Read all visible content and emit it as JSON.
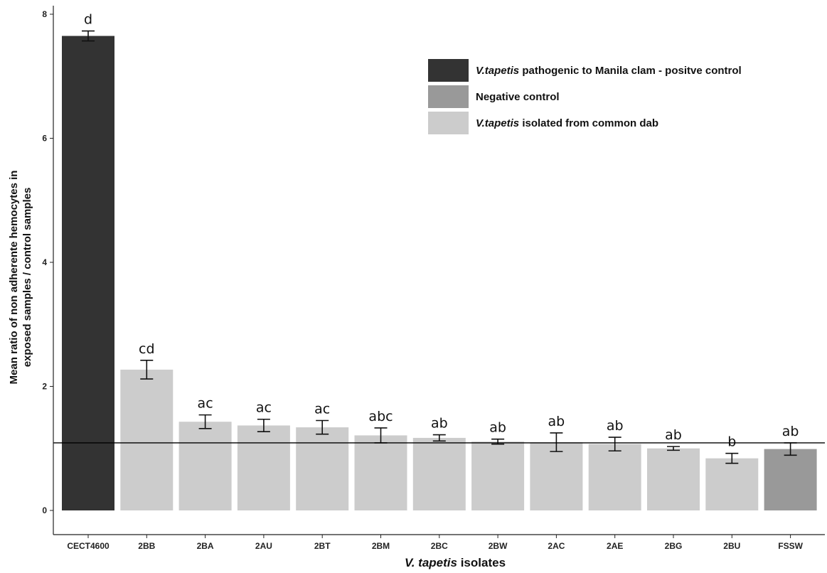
{
  "chart_data": {
    "type": "bar",
    "xlabel_parts": [
      {
        "text": "V. tapetis",
        "italic": true
      },
      {
        "text": " isolates",
        "italic": false
      }
    ],
    "ylabel_lines": [
      "Mean ratio of non adherente hemocytes in",
      "exposed samples / control samples"
    ],
    "ylim": [
      0,
      8
    ],
    "yticks": [
      0,
      2,
      4,
      6,
      8
    ],
    "reference_line": 1.09,
    "categories": [
      "CECT4600",
      "2BB",
      "2BA",
      "2AU",
      "2BT",
      "2BM",
      "2BC",
      "2BW",
      "2AC",
      "2AE",
      "2BG",
      "2BU",
      "FSSW"
    ],
    "values": [
      7.65,
      2.27,
      1.43,
      1.37,
      1.34,
      1.21,
      1.17,
      1.11,
      1.1,
      1.07,
      1.0,
      0.84,
      0.99
    ],
    "error": [
      0.08,
      0.15,
      0.11,
      0.1,
      0.11,
      0.12,
      0.05,
      0.04,
      0.15,
      0.11,
      0.03,
      0.08,
      0.1
    ],
    "significance": [
      "d",
      "cd",
      "ac",
      "ac",
      "ac",
      "abc",
      "ab",
      "ab",
      "ab",
      "ab",
      "ab",
      "b",
      "ab"
    ],
    "groups": [
      "positive",
      "dab",
      "dab",
      "dab",
      "dab",
      "dab",
      "dab",
      "dab",
      "dab",
      "dab",
      "dab",
      "dab",
      "negative"
    ],
    "colors": {
      "positive": "#333333",
      "negative": "#999999",
      "dab": "#cccccc",
      "axis": "#222222",
      "errorbar": "#111111"
    },
    "legend": {
      "placement": "top-right",
      "entries": [
        {
          "group": "positive",
          "parts": [
            {
              "text": "V.tapetis",
              "italic": true
            },
            {
              "text": " pathogenic to Manila clam - positve control",
              "italic": false
            }
          ]
        },
        {
          "group": "negative",
          "parts": [
            {
              "text": "Negative control",
              "italic": false
            }
          ]
        },
        {
          "group": "dab",
          "parts": [
            {
              "text": "V.tapetis",
              "italic": true
            },
            {
              "text": " isolated from common dab",
              "italic": false
            }
          ]
        }
      ]
    },
    "grid": false
  }
}
